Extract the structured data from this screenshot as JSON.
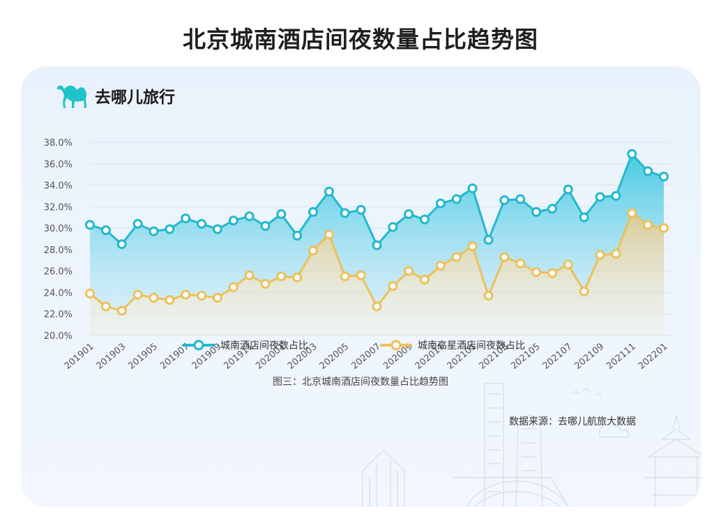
{
  "title": "北京城南酒店间夜数量占比趋势图",
  "brand": {
    "name": "去哪儿旅行",
    "logo_icon": "camel-icon",
    "logo_color": "#1fc4c8"
  },
  "caption": "图三：北京城南酒店间夜数量占比趋势图",
  "source": "数据来源：去哪儿航旅大数据",
  "colors": {
    "series1": "#21b8cc",
    "series2": "#ecc05a",
    "grid": "#d8e3ee",
    "axis_text": "#555555"
  },
  "chart_data": {
    "type": "line",
    "title": "北京城南酒店间夜数量占比趋势图",
    "xlabel": "",
    "ylabel": "",
    "ylim": [
      20,
      38
    ],
    "yticks": [
      "20.0%",
      "22.0%",
      "24.0%",
      "26.0%",
      "28.0%",
      "30.0%",
      "32.0%",
      "34.0%",
      "36.0%",
      "38.0%"
    ],
    "ytick_values": [
      20,
      22,
      24,
      26,
      28,
      30,
      32,
      34,
      36,
      38
    ],
    "x": [
      "201901",
      "201902",
      "201903",
      "201904",
      "201905",
      "201906",
      "201907",
      "201908",
      "201909",
      "201910",
      "201911",
      "201912",
      "202001",
      "202002",
      "202003",
      "202004",
      "202005",
      "202006",
      "202007",
      "202008",
      "202009",
      "202010",
      "202011",
      "202012",
      "202101",
      "202102",
      "202103",
      "202104",
      "202105",
      "202106",
      "202107",
      "202108",
      "202109",
      "202110",
      "202111",
      "202112",
      "202201"
    ],
    "xtick_labels": [
      "201901",
      "201903",
      "201905",
      "201907",
      "201909",
      "201911",
      "202001",
      "202003",
      "202005",
      "202007",
      "202009",
      "202011",
      "202101",
      "202103",
      "202105",
      "202107",
      "202109",
      "202111",
      "202201"
    ],
    "grid": true,
    "legend_position": "bottom",
    "series": [
      {
        "name": "城南酒店间夜数占比",
        "values": [
          30.3,
          29.8,
          28.5,
          30.4,
          29.7,
          29.9,
          30.9,
          30.4,
          29.9,
          30.7,
          31.1,
          30.2,
          31.3,
          29.3,
          31.5,
          33.4,
          31.4,
          31.7,
          28.4,
          30.1,
          31.3,
          30.8,
          32.3,
          32.7,
          33.7,
          28.9,
          32.6,
          32.7,
          31.5,
          31.8,
          33.6,
          31.0,
          32.9,
          33.0,
          36.9,
          35.3,
          34.8
        ]
      },
      {
        "name": "城南高星酒店间夜数占比",
        "values": [
          23.9,
          22.7,
          22.3,
          23.8,
          23.5,
          23.3,
          23.8,
          23.7,
          23.5,
          24.5,
          25.6,
          24.8,
          25.5,
          25.4,
          27.9,
          29.4,
          25.5,
          25.6,
          22.7,
          24.6,
          26.0,
          25.2,
          26.5,
          27.3,
          28.3,
          23.7,
          27.3,
          26.7,
          25.9,
          25.8,
          26.6,
          24.1,
          27.5,
          27.6,
          31.4,
          30.3,
          30.0
        ]
      }
    ]
  }
}
